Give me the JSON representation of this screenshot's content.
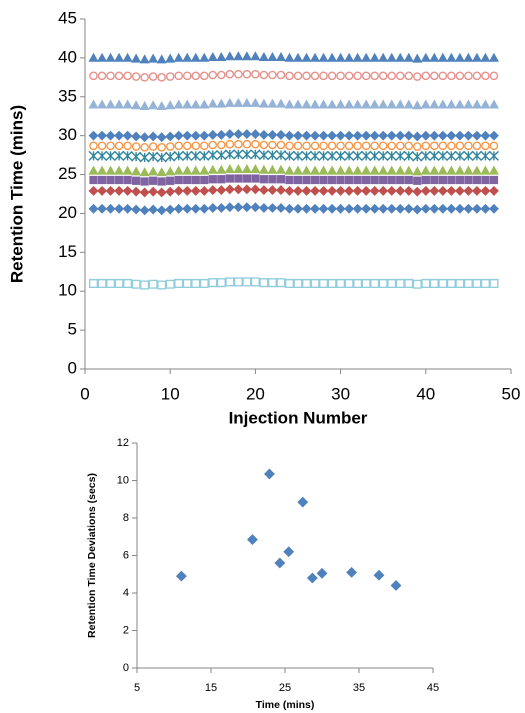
{
  "chart_data": [
    {
      "type": "scatter",
      "x_label": "Injection Number",
      "y_label": "Retention Time (mins)",
      "xlim": [
        0,
        50
      ],
      "xticks": [
        0,
        10,
        20,
        30,
        40,
        50
      ],
      "ylim": [
        0,
        45
      ],
      "yticks": [
        0,
        5,
        10,
        15,
        20,
        25,
        30,
        35,
        40,
        45
      ],
      "grid": false,
      "x": [
        1,
        2,
        3,
        4,
        5,
        6,
        7,
        8,
        9,
        10,
        11,
        12,
        13,
        14,
        15,
        16,
        17,
        18,
        19,
        20,
        21,
        22,
        23,
        24,
        25,
        26,
        27,
        28,
        29,
        30,
        31,
        32,
        33,
        34,
        35,
        36,
        37,
        38,
        39,
        40,
        41,
        42,
        43,
        44,
        45,
        46,
        47,
        48
      ],
      "series": [
        {
          "color": "#4f81bd",
          "marker": "triangle",
          "values": [
            40,
            40,
            40,
            40,
            40,
            39.9,
            39.8,
            39.9,
            39.8,
            39.9,
            40,
            40,
            40,
            40,
            40.1,
            40.1,
            40.2,
            40.2,
            40.2,
            40.2,
            40.1,
            40.1,
            40.1,
            40,
            40,
            40,
            40,
            40,
            40,
            40,
            40,
            40,
            40,
            40,
            40,
            40,
            40,
            40,
            39.9,
            40,
            40,
            40,
            40,
            40,
            40,
            40,
            40,
            40
          ]
        },
        {
          "color": "#e6908a",
          "marker": "open-circle",
          "values": [
            37.7,
            37.7,
            37.7,
            37.7,
            37.7,
            37.6,
            37.5,
            37.6,
            37.5,
            37.6,
            37.7,
            37.7,
            37.7,
            37.7,
            37.8,
            37.8,
            37.9,
            37.9,
            37.9,
            37.9,
            37.8,
            37.8,
            37.8,
            37.7,
            37.7,
            37.7,
            37.7,
            37.7,
            37.7,
            37.7,
            37.7,
            37.7,
            37.7,
            37.7,
            37.7,
            37.7,
            37.7,
            37.7,
            37.6,
            37.7,
            37.7,
            37.7,
            37.7,
            37.7,
            37.7,
            37.7,
            37.7,
            37.7
          ]
        },
        {
          "color": "#95b3d7",
          "marker": "triangle",
          "values": [
            34,
            34,
            34,
            34,
            34,
            33.9,
            33.8,
            33.9,
            33.8,
            33.9,
            34,
            34,
            34,
            34,
            34.1,
            34.1,
            34.2,
            34.2,
            34.2,
            34.2,
            34.1,
            34.1,
            34.1,
            34,
            34,
            34,
            34,
            34,
            34,
            34,
            34,
            34,
            34,
            34,
            34,
            34,
            34,
            34,
            33.9,
            34,
            34,
            34,
            34,
            34,
            34,
            34,
            34,
            34
          ]
        },
        {
          "color": "#4f81bd",
          "marker": "diamond",
          "values": [
            30,
            30,
            30,
            30,
            30,
            29.9,
            29.8,
            29.9,
            29.8,
            29.9,
            30,
            30,
            30,
            30,
            30.1,
            30.1,
            30.2,
            30.2,
            30.2,
            30.2,
            30.1,
            30.1,
            30.1,
            30,
            30,
            30,
            30,
            30,
            30,
            30,
            30,
            30,
            30,
            30,
            30,
            30,
            30,
            30,
            29.9,
            30,
            30,
            30,
            30,
            30,
            30,
            30,
            30,
            30
          ]
        },
        {
          "color": "#f79646",
          "marker": "open-circle",
          "values": [
            28.7,
            28.7,
            28.7,
            28.7,
            28.7,
            28.6,
            28.5,
            28.6,
            28.5,
            28.6,
            28.7,
            28.7,
            28.7,
            28.7,
            28.8,
            28.8,
            28.9,
            28.9,
            28.9,
            28.9,
            28.8,
            28.8,
            28.8,
            28.7,
            28.7,
            28.7,
            28.7,
            28.7,
            28.7,
            28.7,
            28.7,
            28.7,
            28.7,
            28.7,
            28.7,
            28.7,
            28.7,
            28.7,
            28.6,
            28.7,
            28.7,
            28.7,
            28.7,
            28.7,
            28.7,
            28.7,
            28.7,
            28.7
          ]
        },
        {
          "color": "#31859c",
          "marker": "x",
          "values": [
            27.4,
            27.4,
            27.4,
            27.4,
            27.4,
            27.3,
            27.2,
            27.3,
            27.2,
            27.3,
            27.4,
            27.4,
            27.4,
            27.4,
            27.5,
            27.5,
            27.6,
            27.6,
            27.6,
            27.6,
            27.5,
            27.5,
            27.5,
            27.4,
            27.4,
            27.4,
            27.4,
            27.4,
            27.4,
            27.4,
            27.4,
            27.4,
            27.4,
            27.4,
            27.4,
            27.4,
            27.4,
            27.4,
            27.3,
            27.4,
            27.4,
            27.4,
            27.4,
            27.4,
            27.4,
            27.4,
            27.4,
            27.4
          ]
        },
        {
          "color": "#9bbb59",
          "marker": "triangle",
          "values": [
            25.5,
            25.5,
            25.5,
            25.5,
            25.5,
            25.4,
            25.3,
            25.4,
            25.3,
            25.4,
            25.5,
            25.5,
            25.5,
            25.5,
            25.6,
            25.6,
            25.7,
            25.7,
            25.7,
            25.7,
            25.6,
            25.6,
            25.6,
            25.5,
            25.5,
            25.5,
            25.5,
            25.5,
            25.5,
            25.5,
            25.5,
            25.5,
            25.5,
            25.5,
            25.5,
            25.5,
            25.5,
            25.5,
            25.4,
            25.5,
            25.5,
            25.5,
            25.5,
            25.5,
            25.5,
            25.5,
            25.5,
            25.5
          ]
        },
        {
          "color": "#8064a2",
          "marker": "square",
          "values": [
            24.3,
            24.3,
            24.3,
            24.3,
            24.3,
            24.2,
            24.1,
            24.2,
            24.1,
            24.2,
            24.3,
            24.3,
            24.3,
            24.3,
            24.4,
            24.4,
            24.5,
            24.5,
            24.5,
            24.5,
            24.4,
            24.4,
            24.4,
            24.3,
            24.3,
            24.3,
            24.3,
            24.3,
            24.3,
            24.3,
            24.3,
            24.3,
            24.3,
            24.3,
            24.3,
            24.3,
            24.3,
            24.3,
            24.2,
            24.3,
            24.3,
            24.3,
            24.3,
            24.3,
            24.3,
            24.3,
            24.3,
            24.3
          ]
        },
        {
          "color": "#c0504d",
          "marker": "diamond",
          "values": [
            22.9,
            22.9,
            22.9,
            22.9,
            22.9,
            22.8,
            22.7,
            22.8,
            22.7,
            22.8,
            22.9,
            22.9,
            22.9,
            22.9,
            23,
            23,
            23.1,
            23.1,
            23.1,
            23.1,
            23,
            23,
            23,
            22.9,
            22.9,
            22.9,
            22.9,
            22.9,
            22.9,
            22.9,
            22.9,
            22.9,
            22.9,
            22.9,
            22.9,
            22.9,
            22.9,
            22.9,
            22.8,
            22.9,
            22.9,
            22.9,
            22.9,
            22.9,
            22.9,
            22.9,
            22.9,
            22.9
          ]
        },
        {
          "color": "#4f81bd",
          "marker": "diamond",
          "values": [
            20.6,
            20.6,
            20.6,
            20.6,
            20.6,
            20.5,
            20.4,
            20.5,
            20.4,
            20.5,
            20.6,
            20.6,
            20.6,
            20.6,
            20.7,
            20.7,
            20.8,
            20.8,
            20.8,
            20.8,
            20.7,
            20.7,
            20.7,
            20.6,
            20.6,
            20.6,
            20.6,
            20.6,
            20.6,
            20.6,
            20.6,
            20.6,
            20.6,
            20.6,
            20.6,
            20.6,
            20.6,
            20.6,
            20.5,
            20.6,
            20.6,
            20.6,
            20.6,
            20.6,
            20.6,
            20.6,
            20.6,
            20.6
          ]
        },
        {
          "color": "#92cddc",
          "marker": "open-square",
          "values": [
            11,
            11,
            11,
            11,
            11,
            10.9,
            10.8,
            10.9,
            10.8,
            10.9,
            11,
            11,
            11,
            11,
            11.1,
            11.1,
            11.2,
            11.2,
            11.2,
            11.2,
            11.1,
            11.1,
            11.1,
            11,
            11,
            11,
            11,
            11,
            11,
            11,
            11,
            11,
            11,
            11,
            11,
            11,
            11,
            11,
            10.9,
            11,
            11,
            11,
            11,
            11,
            11,
            11,
            11,
            11
          ]
        }
      ]
    },
    {
      "type": "scatter",
      "x_label": "Time (mins)",
      "y_label": "Retention Time Deviations (secs)",
      "xlim": [
        5,
        45
      ],
      "xticks": [
        5,
        15,
        25,
        35,
        45
      ],
      "ylim": [
        0,
        12
      ],
      "yticks": [
        0,
        2,
        4,
        6,
        8,
        10,
        12
      ],
      "grid": false,
      "series": [
        {
          "color": "#4f81bd",
          "marker": "diamond",
          "x": [
            11,
            20.6,
            22.9,
            24.3,
            25.5,
            27.4,
            28.7,
            30,
            34,
            37.7,
            40
          ],
          "values": [
            4.9,
            6.85,
            10.35,
            5.6,
            6.2,
            8.85,
            4.8,
            5.05,
            5.1,
            4.95,
            4.4
          ]
        }
      ]
    }
  ]
}
